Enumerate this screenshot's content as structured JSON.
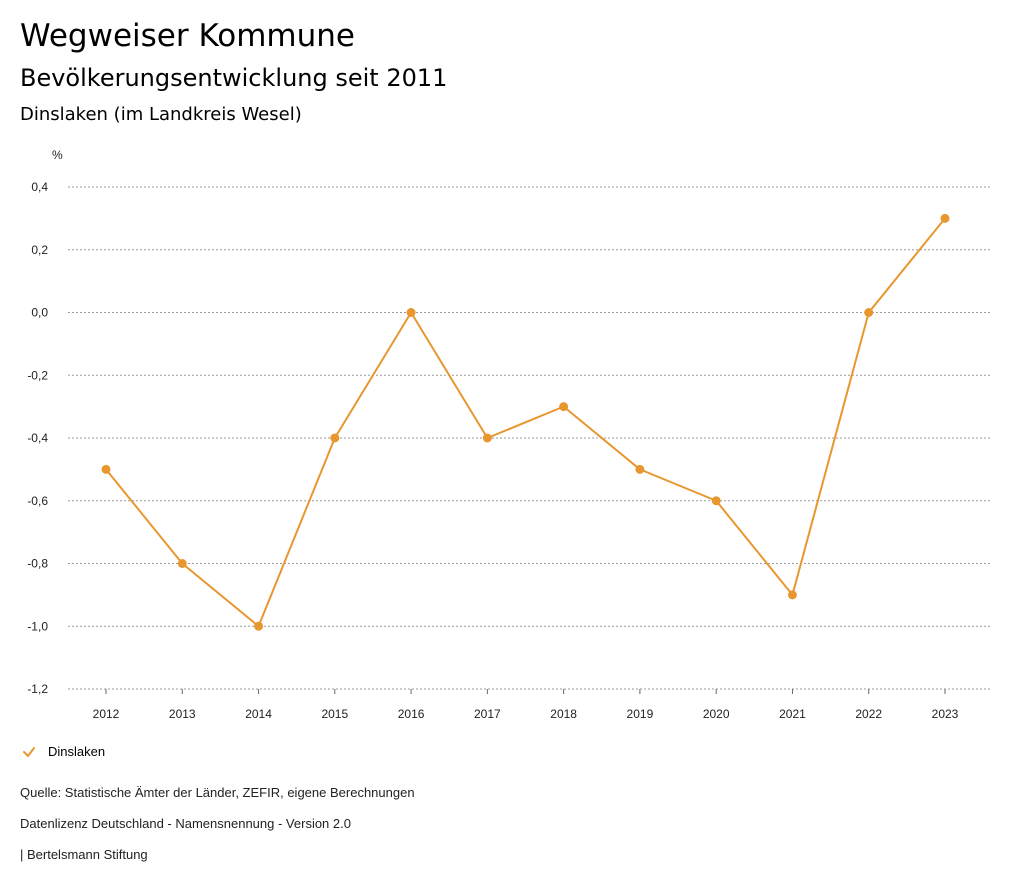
{
  "header": {
    "title": "Wegweiser Kommune",
    "subtitle": "Bevölkerungsentwicklung seit 2011",
    "region": "Dinslaken (im Landkreis Wesel)"
  },
  "chart_data": {
    "type": "line",
    "ylabel": "%",
    "ylim": [
      -1.2,
      0.4
    ],
    "yticks": [
      "0,4",
      "0,2",
      "0,0",
      "-0,2",
      "-0,4",
      "-0,6",
      "-0,8",
      "-1,0",
      "-1,2"
    ],
    "ytick_values": [
      0.4,
      0.2,
      0.0,
      -0.2,
      -0.4,
      -0.6,
      -0.8,
      -1.0,
      -1.2
    ],
    "categories": [
      "2012",
      "2013",
      "2014",
      "2015",
      "2016",
      "2017",
      "2018",
      "2019",
      "2020",
      "2021",
      "2022",
      "2023"
    ],
    "series": [
      {
        "name": "Dinslaken",
        "color": "#e8972f",
        "values": [
          -0.5,
          -0.8,
          -1.0,
          -0.4,
          0.0,
          -0.4,
          -0.3,
          -0.5,
          -0.6,
          -0.9,
          0.0,
          0.3
        ]
      }
    ],
    "grid": true,
    "legend": "bottom-left"
  },
  "footer": {
    "source": "Quelle: Statistische Ämter der Länder, ZEFIR, eigene Berechnungen",
    "license": "Datenlizenz Deutschland - Namensnennung - Version 2.0",
    "publisher": "| Bertelsmann Stiftung"
  }
}
